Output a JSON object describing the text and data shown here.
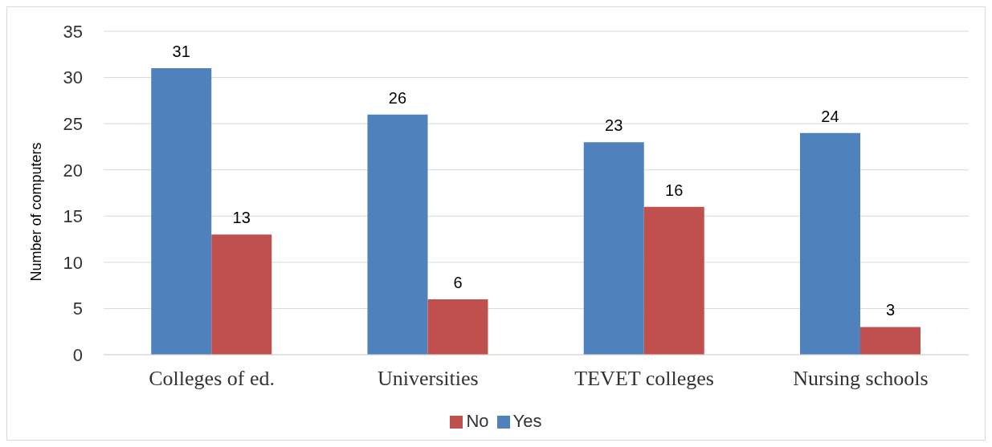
{
  "chart_data": {
    "type": "bar",
    "ylabel": "Number of computers",
    "categories": [
      "Colleges of ed.",
      "Universities",
      "TEVET colleges",
      "Nursing schools"
    ],
    "series": [
      {
        "name": "Yes",
        "color": "#4f81bd",
        "values": [
          31,
          26,
          23,
          24
        ]
      },
      {
        "name": "No",
        "color": "#c0504d",
        "values": [
          13,
          6,
          16,
          3
        ]
      }
    ],
    "ylim": [
      0,
      35
    ],
    "yticks": [
      0,
      5,
      10,
      15,
      20,
      25,
      30,
      35
    ],
    "grid": "y",
    "legend": "bottom",
    "data_labels": true
  }
}
